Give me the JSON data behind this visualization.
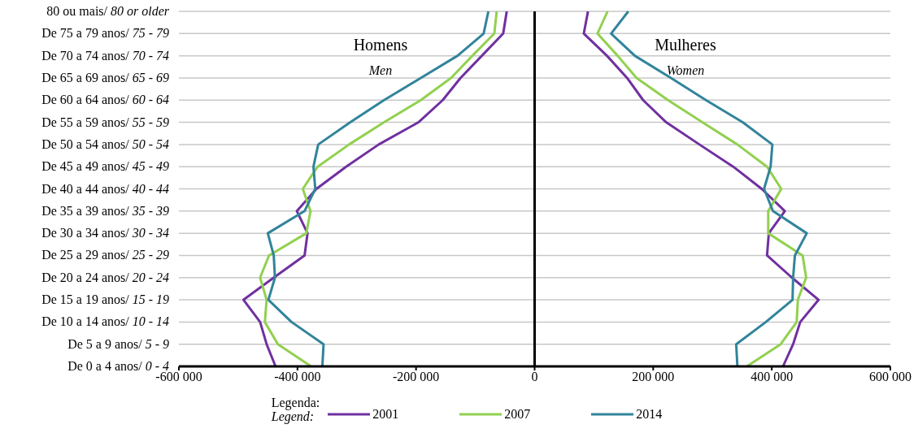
{
  "chart_data": {
    "type": "line",
    "categories": [
      "80 ou mais/ 80 or older",
      "De 75 a 79 anos/ 75 - 79",
      "De 70 a 74 anos/ 70 - 74",
      "De 65 a 69 anos/ 65 - 69",
      "De 60 a 64 anos/ 60 - 64",
      "De 55 a 59 anos/ 55 - 59",
      "De 50 a 54 anos/ 50 - 54",
      "De 45 a 49 anos/ 45 - 49",
      "De 40 a 44 anos/ 40 - 44",
      "De 35 a 39 anos/ 35 - 39",
      "De 30 a 34 anos/ 30 - 34",
      "De 25 a 29 anos/ 25 - 29",
      "De 20 a 24 anos/ 20 - 24",
      "De 15 a 19 anos/ 15 - 19",
      "De 10 a 14 anos/ 10 - 14",
      "De 5 a 9 anos/ 5 - 9",
      "De 0 a 4 anos/ 0 - 4"
    ],
    "series": [
      {
        "name": "2001",
        "color": "#7030a0",
        "values": [
          -47000,
          -53000,
          -89000,
          -125000,
          -155000,
          -196000,
          -263000,
          -318000,
          -368000,
          -401000,
          -383000,
          -388000,
          -440000,
          -491000,
          -463000,
          -452000,
          -437000
        ]
      },
      {
        "name": "2007",
        "color": "#92d050",
        "values": [
          -64000,
          -68000,
          -105000,
          -141000,
          -192000,
          -254000,
          -313000,
          -366000,
          -391000,
          -378000,
          -385000,
          -448000,
          -463000,
          -452000,
          -455000,
          -433000,
          -377000
        ]
      },
      {
        "name": "2014",
        "color": "#31849b",
        "values": [
          -78000,
          -86000,
          -130000,
          -192000,
          -254000,
          -311000,
          -365000,
          -373000,
          -370000,
          -388000,
          -450000,
          -440000,
          -438000,
          -449000,
          -410000,
          -356000,
          -358000
        ]
      },
      {
        "color": "#7030a0",
        "values": [
          90000,
          83000,
          122000,
          156000,
          183000,
          222000,
          278000,
          335000,
          383000,
          422000,
          395000,
          392000,
          434000,
          479000,
          448000,
          436000,
          419000
        ]
      },
      {
        "color": "#92d050",
        "values": [
          123000,
          106000,
          140000,
          172000,
          225000,
          283000,
          342000,
          392000,
          416000,
          394000,
          394000,
          452000,
          458000,
          444000,
          442000,
          415000,
          358000
        ]
      },
      {
        "color": "#31849b",
        "values": [
          158000,
          129000,
          169000,
          230000,
          289000,
          351000,
          401000,
          398000,
          387000,
          402000,
          459000,
          439000,
          436000,
          435000,
          390000,
          340000,
          342000
        ]
      }
    ],
    "xlim": [
      -600000,
      600000
    ],
    "xticks": [
      {
        "value": -600000,
        "label": "-600 000"
      },
      {
        "value": -400000,
        "label": "-400 000"
      },
      {
        "value": -200000,
        "label": "-200 000"
      },
      {
        "value": 0,
        "label": "0"
      },
      {
        "value": 200000,
        "label": "200 000"
      },
      {
        "value": 400000,
        "label": "400 000"
      },
      {
        "value": 600000,
        "label": "600 000"
      }
    ],
    "ref_lines": [
      {
        "axis": "x",
        "value": 0,
        "color": "#000000"
      }
    ],
    "annotations": [
      "Homens",
      "Men",
      "Mulheres",
      "Women"
    ],
    "orientation": "horizontal",
    "legend": "bottom",
    "legend_title": "Legenda:\nLegend:",
    "grid": "y",
    "marker": "none"
  }
}
